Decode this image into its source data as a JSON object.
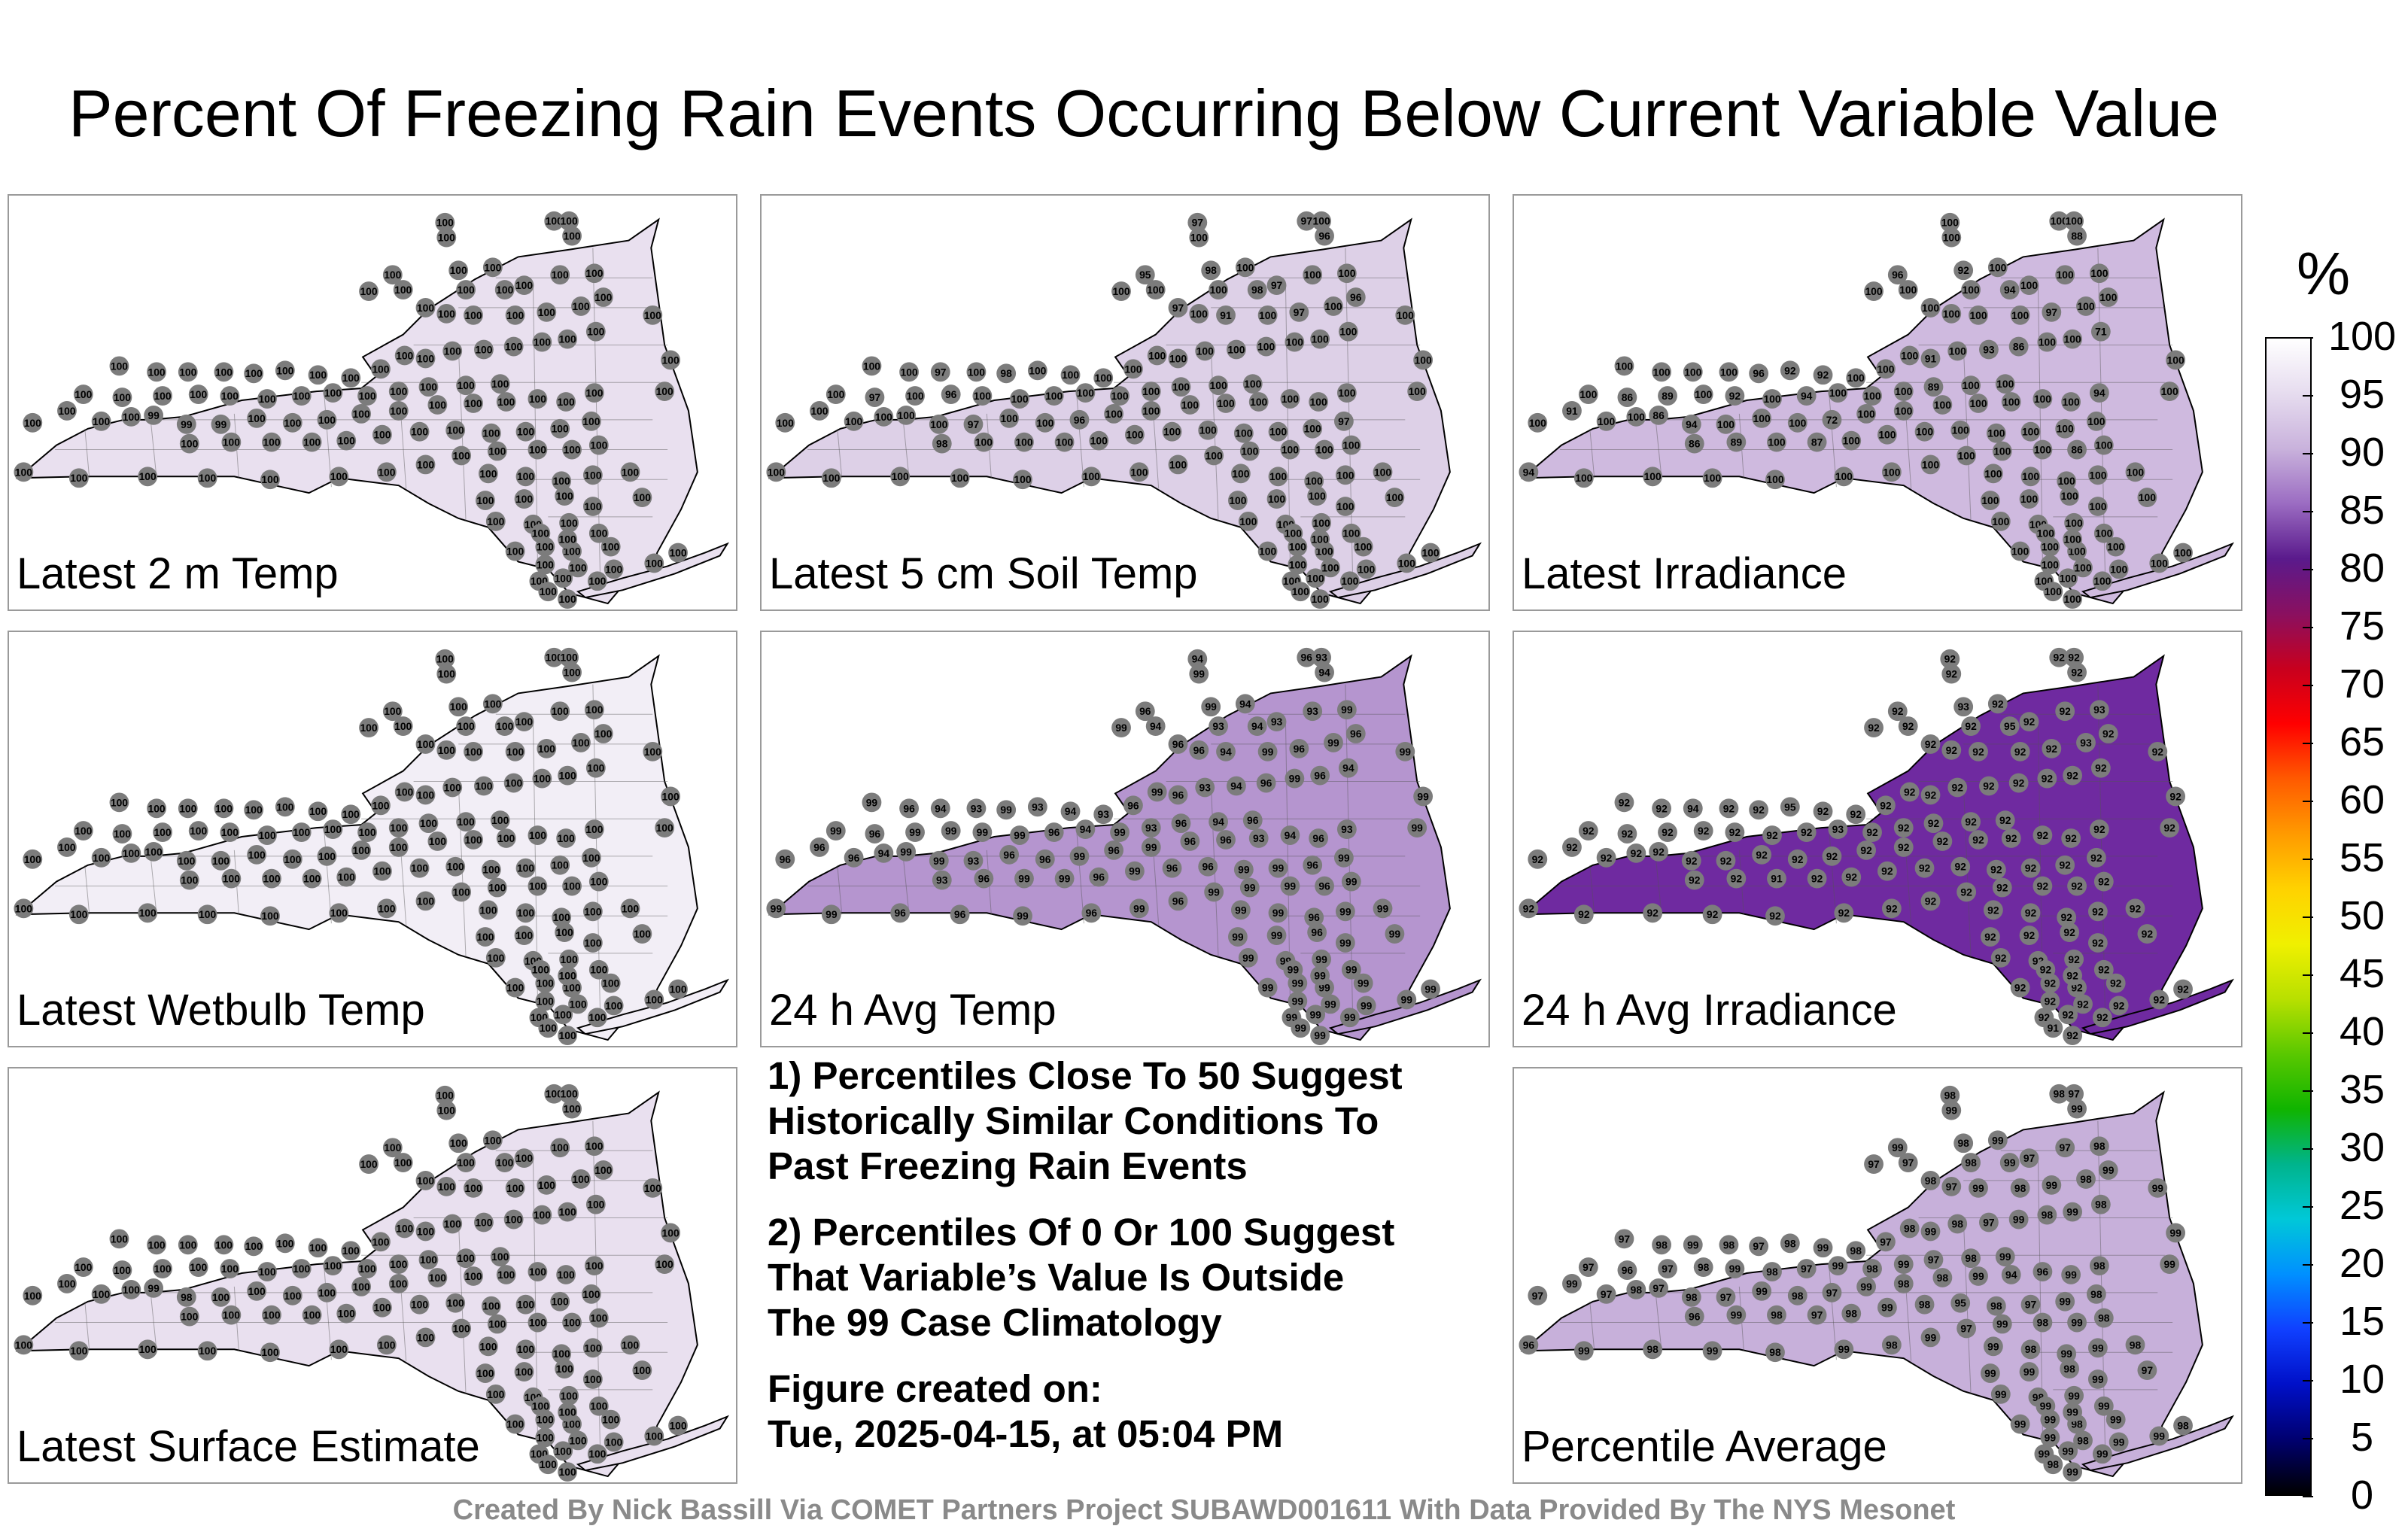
{
  "title": "Percent Of Freezing Rain Events Occurring Below Current Variable Value",
  "panels": [
    {
      "label": "Latest 2 m Temp",
      "shade": "#e9e0ef",
      "stations": [
        100,
        100,
        100,
        100,
        100,
        100,
        100,
        100,
        100,
        100,
        100,
        100,
        100,
        100,
        100,
        100,
        100,
        100,
        100,
        100,
        100,
        100,
        100,
        100,
        100,
        100,
        100,
        100,
        100,
        100,
        100,
        100,
        100,
        100,
        100,
        100,
        100,
        100,
        100,
        100,
        100,
        100,
        100,
        100,
        100,
        100,
        100,
        100,
        100,
        100,
        100,
        100,
        99,
        99,
        99,
        100,
        100,
        100,
        100,
        100,
        100,
        100,
        100,
        100,
        100,
        100,
        100,
        100,
        100,
        100,
        100,
        100,
        100,
        100,
        100,
        100,
        100,
        100,
        100,
        100,
        100,
        100,
        100,
        100,
        100,
        100,
        100,
        100,
        100,
        100,
        100,
        100,
        100,
        100,
        100,
        100,
        100,
        100,
        100,
        100,
        100,
        100,
        100,
        100,
        100,
        100,
        100,
        100,
        100,
        100,
        100,
        100,
        100,
        100,
        100,
        100,
        100,
        100,
        100,
        100,
        100,
        100,
        100,
        100,
        100,
        100,
        100,
        100
      ]
    },
    {
      "label": "Latest 5 cm Soil Temp",
      "shade": "#ddd0e7",
      "stations": [
        97,
        100,
        97,
        100,
        96,
        100,
        95,
        100,
        98,
        100,
        97,
        100,
        100,
        98,
        100,
        97,
        100,
        91,
        100,
        97,
        100,
        96,
        100,
        100,
        97,
        100,
        98,
        100,
        100,
        100,
        100,
        100,
        100,
        100,
        100,
        100,
        100,
        100,
        100,
        100,
        97,
        100,
        96,
        100,
        100,
        100,
        100,
        100,
        100,
        100,
        100,
        100,
        100,
        100,
        97,
        100,
        100,
        96,
        100,
        100,
        100,
        100,
        100,
        100,
        100,
        100,
        100,
        100,
        98,
        100,
        100,
        100,
        100,
        100,
        100,
        100,
        100,
        100,
        100,
        97,
        100,
        100,
        100,
        100,
        100,
        100,
        100,
        100,
        100,
        100,
        100,
        100,
        100,
        100,
        100,
        100,
        100,
        100,
        100,
        100,
        100,
        100,
        100,
        100,
        100,
        100,
        100,
        100,
        100,
        100,
        100,
        100,
        100,
        100,
        100,
        100,
        100,
        100,
        100,
        100,
        100,
        100,
        100,
        100,
        100,
        100,
        100,
        100
      ]
    },
    {
      "label": "Latest Irradiance",
      "shade": "#cfbadf",
      "stations": [
        100,
        100,
        100,
        100,
        88,
        100,
        96,
        100,
        92,
        100,
        100,
        100,
        100,
        94,
        100,
        100,
        100,
        100,
        100,
        97,
        100,
        100,
        100,
        100,
        100,
        100,
        96,
        92,
        92,
        100,
        100,
        100,
        91,
        100,
        93,
        86,
        100,
        100,
        71,
        100,
        86,
        89,
        100,
        92,
        100,
        94,
        100,
        100,
        100,
        89,
        100,
        100,
        86,
        94,
        100,
        100,
        100,
        72,
        100,
        100,
        100,
        100,
        100,
        100,
        100,
        94,
        100,
        100,
        86,
        89,
        100,
        87,
        100,
        100,
        100,
        100,
        100,
        100,
        100,
        100,
        91,
        100,
        94,
        100,
        100,
        100,
        100,
        100,
        100,
        100,
        100,
        100,
        100,
        86,
        100,
        100,
        100,
        100,
        100,
        100,
        100,
        100,
        100,
        100,
        100,
        100,
        100,
        100,
        100,
        100,
        100,
        100,
        100,
        100,
        100,
        100,
        100,
        100,
        100,
        100,
        100,
        100,
        100,
        100,
        100,
        100,
        100
      ]
    },
    {
      "label": "Latest Wetbulb Temp",
      "shade": "#f2eef6",
      "stations": [
        100,
        100,
        100,
        100,
        100,
        100,
        100,
        100,
        100,
        100,
        100,
        100,
        100,
        100,
        100,
        100,
        100,
        100,
        100,
        100,
        100,
        100,
        100,
        100,
        100,
        100,
        100,
        100,
        100,
        100,
        100,
        100,
        100,
        100,
        100,
        100,
        100,
        100,
        100,
        100,
        100,
        100,
        100,
        100,
        100,
        100,
        100,
        100,
        100,
        100,
        100,
        100,
        100,
        100,
        100,
        100,
        100,
        100,
        100,
        100,
        100,
        100,
        100,
        100,
        100,
        100,
        100,
        100,
        100,
        100,
        100,
        100,
        100,
        100,
        100,
        100,
        100,
        100,
        100,
        100,
        100,
        100,
        100,
        100,
        100,
        100,
        100,
        100,
        100,
        100,
        100,
        100,
        100,
        100,
        100,
        100,
        100,
        100,
        100,
        100,
        100,
        100,
        100,
        100,
        100,
        100,
        100,
        100,
        100,
        100,
        100,
        100,
        100,
        100,
        100,
        100,
        100,
        100,
        100,
        100,
        100,
        100,
        100,
        100,
        100,
        100,
        100,
        100
      ]
    },
    {
      "label": "24 h Avg Temp",
      "shade": "#b595cf",
      "stations": [
        94,
        99,
        96,
        93,
        94,
        94,
        96,
        99,
        99,
        94,
        93,
        93,
        99,
        94,
        93,
        96,
        96,
        94,
        99,
        96,
        99,
        96,
        99,
        96,
        94,
        93,
        99,
        93,
        94,
        93,
        96,
        99,
        96,
        93,
        94,
        96,
        99,
        96,
        94,
        99,
        96,
        99,
        99,
        99,
        99,
        96,
        94,
        99,
        93,
        96,
        94,
        96,
        99,
        99,
        93,
        96,
        96,
        99,
        96,
        99,
        96,
        96,
        93,
        94,
        96,
        93,
        96,
        94,
        93,
        96,
        99,
        99,
        96,
        99,
        96,
        96,
        99,
        99,
        96,
        99,
        96,
        96,
        99,
        99,
        96,
        96,
        99,
        96,
        99,
        96,
        99,
        99,
        99,
        96,
        99,
        99,
        99,
        96,
        99,
        99,
        99,
        99,
        96,
        99,
        99,
        99,
        99,
        99,
        99,
        99,
        99,
        99,
        99,
        99,
        99,
        99,
        99,
        99,
        99,
        99,
        99,
        99,
        99,
        99,
        99,
        99,
        99,
        99,
        99,
        99
      ]
    },
    {
      "label": "24 h Avg Irradiance",
      "shade": "#6f2aa0",
      "stations": [
        92,
        92,
        92,
        92,
        92,
        92,
        92,
        92,
        93,
        92,
        92,
        92,
        93,
        95,
        92,
        92,
        92,
        92,
        92,
        92,
        93,
        92,
        92,
        92,
        94,
        92,
        92,
        95,
        92,
        92,
        92,
        92,
        92,
        92,
        92,
        92,
        92,
        92,
        92,
        92,
        92,
        92,
        92,
        92,
        92,
        92,
        93,
        92,
        92,
        92,
        92,
        92,
        92,
        92,
        92,
        92,
        92,
        92,
        92,
        92,
        92,
        92,
        92,
        92,
        92,
        92,
        92,
        92,
        92,
        92,
        91,
        92,
        92,
        92,
        92,
        92,
        92,
        92,
        92,
        92,
        92,
        92,
        92,
        92,
        92,
        92,
        92,
        92,
        92,
        92,
        92,
        92,
        92,
        92,
        92,
        92,
        92,
        92,
        92,
        92,
        92,
        92,
        92,
        92,
        92,
        92,
        92,
        92,
        92,
        92,
        92,
        92,
        92,
        92,
        92,
        92,
        91,
        92,
        92,
        92,
        92,
        92,
        92,
        92,
        92,
        92,
        92,
        92,
        91,
        90
      ]
    },
    null,
    {
      "label": "Latest Surface Estimate",
      "shade": "#e9e0ef",
      "stations": [
        100,
        100,
        100,
        100,
        100,
        100,
        100,
        100,
        100,
        100,
        100,
        100,
        100,
        100,
        100,
        100,
        100,
        100,
        100,
        100,
        100,
        100,
        100,
        100,
        100,
        100,
        100,
        100,
        100,
        100,
        100,
        100,
        100,
        100,
        100,
        100,
        100,
        100,
        100,
        100,
        100,
        100,
        100,
        100,
        100,
        100,
        100,
        100,
        100,
        100,
        100,
        100,
        99,
        98,
        100,
        100,
        100,
        100,
        100,
        100,
        100,
        100,
        100,
        100,
        100,
        100,
        100,
        100,
        100,
        100,
        100,
        100,
        100,
        100,
        100,
        100,
        100,
        100,
        100,
        100,
        100,
        100,
        100,
        100,
        100,
        100,
        100,
        100,
        100,
        100,
        100,
        100,
        100,
        100,
        100,
        100,
        100,
        100,
        100,
        100,
        100,
        100,
        100,
        100,
        100,
        100,
        100,
        100,
        100,
        100,
        100,
        100,
        100,
        100,
        100,
        100,
        100,
        100,
        100,
        100,
        100,
        100,
        100,
        100,
        100,
        100,
        100,
        100
      ]
    },
    {
      "label": "Percentile Average",
      "shade": "#c7b0da",
      "stations": [
        98,
        99,
        98,
        97,
        99,
        97,
        99,
        97,
        98,
        99,
        97,
        97,
        98,
        99,
        98,
        98,
        97,
        99,
        98,
        99,
        98,
        99,
        97,
        98,
        99,
        98,
        97,
        98,
        99,
        98,
        97,
        98,
        99,
        98,
        97,
        99,
        98,
        99,
        98,
        97,
        96,
        97,
        98,
        99,
        98,
        97,
        99,
        98,
        99,
        97,
        98,
        99,
        97,
        98,
        97,
        99,
        98,
        97,
        99,
        98,
        98,
        99,
        94,
        96,
        99,
        98,
        97,
        98,
        96,
        99,
        98,
        97,
        98,
        99,
        98,
        95,
        98,
        97,
        99,
        98,
        99,
        97,
        96,
        99,
        98,
        99,
        98,
        99,
        98,
        99,
        97,
        99,
        98,
        99,
        98,
        99,
        98,
        99,
        99,
        98,
        99,
        99,
        98,
        99,
        99,
        98,
        99,
        99,
        99,
        98,
        99,
        99,
        99,
        98,
        99,
        99,
        98,
        99,
        99,
        99,
        98,
        99,
        99,
        99,
        97,
        99,
        99,
        99
      ]
    }
  ],
  "notes": {
    "n1": "1) Percentiles Close To 50 Suggest\nHistorically Similar Conditions To\nPast Freezing Rain Events",
    "n2": "2) Percentiles Of 0 Or 100 Suggest\nThat Variable’s Value Is Outside\nThe 99 Case Climatology",
    "n3": "Figure created on:\nTue, 2025-04-15, at 05:04 PM"
  },
  "credit": "Created By Nick Bassill Via COMET Partners Project SUBAWD001611 With Data Provided By The NYS Mesonet",
  "colorbar": {
    "unit": "%",
    "ticks": [
      "100",
      "95",
      "90",
      "85",
      "80",
      "75",
      "70",
      "65",
      "60",
      "55",
      "50",
      "45",
      "40",
      "35",
      "30",
      "25",
      "20",
      "15",
      "10",
      "5",
      "0"
    ],
    "colors": [
      "#ffffff",
      "#e6dcef",
      "#c9b2dc",
      "#9b6cc2",
      "#5a1a8c",
      "#8a1060",
      "#c8001e",
      "#ff0000",
      "#ff5a00",
      "#ff9a00",
      "#ffd200",
      "#f0f000",
      "#b8e000",
      "#5ac800",
      "#10b400",
      "#00b48c",
      "#00c8d8",
      "#0090ff",
      "#1040ff",
      "#0010c8",
      "#000070",
      "#000000"
    ]
  }
}
